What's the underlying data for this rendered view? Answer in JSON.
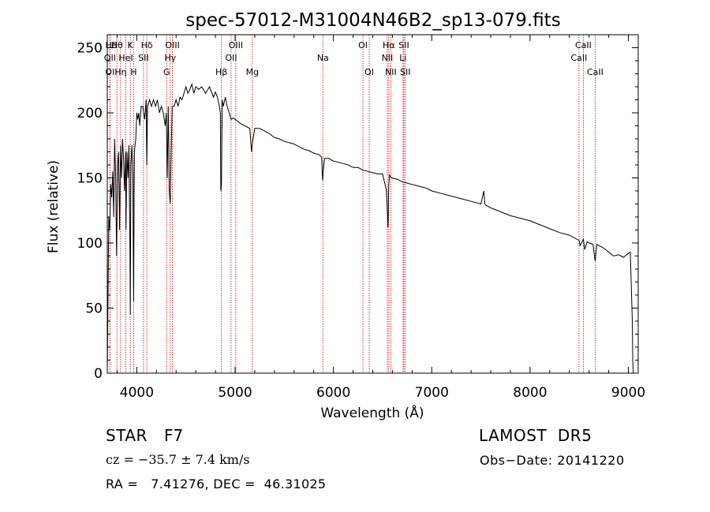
{
  "chart_data": {
    "type": "line",
    "title": "spec-57012-M31004N46B2_sp13-079.fits",
    "xlabel": "Wavelength (Å)",
    "ylabel": "Flux (relative)",
    "xlim": [
      3700,
      9100
    ],
    "ylim": [
      0,
      260
    ],
    "xticks": [
      4000,
      5000,
      6000,
      7000,
      8000,
      9000
    ],
    "yticks": [
      0,
      50,
      100,
      150,
      200,
      250
    ],
    "grid": false,
    "series": [
      {
        "x": [
          3700,
          3715,
          3725,
          3735,
          3745,
          3755,
          3765,
          3775,
          3785,
          3795,
          3805,
          3815,
          3825,
          3835,
          3845,
          3855,
          3865,
          3875,
          3885,
          3890,
          3900,
          3910,
          3920,
          3930,
          3934,
          3940,
          3950,
          3960,
          3968,
          3975,
          3990,
          4000,
          4010,
          4020,
          4030,
          4045,
          4060,
          4080,
          4095,
          4102,
          4110,
          4130,
          4150,
          4170,
          4190,
          4210,
          4230,
          4250,
          4270,
          4290,
          4300,
          4310,
          4320,
          4330,
          4340,
          4350,
          4360,
          4380,
          4400,
          4420,
          4440,
          4460,
          4480,
          4500,
          4520,
          4540,
          4560,
          4580,
          4600,
          4630,
          4660,
          4700,
          4740,
          4780,
          4800,
          4820,
          4840,
          4850,
          4855,
          4861,
          4870,
          4880,
          4900,
          4920,
          4940,
          4960,
          4980,
          5000,
          5050,
          5100,
          5150,
          5167,
          5172,
          5183,
          5200,
          5250,
          5300,
          5350,
          5400,
          5450,
          5500,
          5550,
          5600,
          5650,
          5700,
          5750,
          5800,
          5850,
          5880,
          5890,
          5896,
          5910,
          5950,
          6000,
          6050,
          6100,
          6150,
          6200,
          6250,
          6300,
          6350,
          6400,
          6450,
          6500,
          6540,
          6555,
          6563,
          6572,
          6590,
          6650,
          6700,
          6750,
          6800,
          6850,
          6900,
          6950,
          7000,
          7100,
          7200,
          7300,
          7400,
          7500,
          7530,
          7540,
          7550,
          7600,
          7700,
          7800,
          7900,
          8000,
          8100,
          8200,
          8300,
          8400,
          8450,
          8498,
          8510,
          8542,
          8555,
          8580,
          8600,
          8640,
          8662,
          8680,
          8700,
          8750,
          8800,
          8850,
          8900,
          8950,
          9000,
          9020,
          9040,
          9045,
          9050
        ],
        "y": [
          0,
          120,
          110,
          145,
          135,
          155,
          120,
          180,
          150,
          90,
          160,
          170,
          110,
          175,
          150,
          180,
          165,
          140,
          170,
          110,
          170,
          150,
          175,
          95,
          45,
          160,
          175,
          150,
          55,
          170,
          180,
          200,
          195,
          200,
          190,
          205,
          205,
          195,
          210,
          160,
          205,
          210,
          205,
          210,
          205,
          210,
          200,
          205,
          200,
          190,
          200,
          150,
          205,
          140,
          130,
          170,
          205,
          205,
          210,
          205,
          212,
          210,
          215,
          220,
          215,
          218,
          222,
          215,
          220,
          218,
          220,
          215,
          220,
          212,
          216,
          212,
          205,
          200,
          140,
          145,
          210,
          205,
          212,
          205,
          200,
          195,
          196,
          195,
          192,
          190,
          188,
          170,
          175,
          180,
          188,
          188,
          186,
          184,
          181,
          180,
          178,
          177,
          176,
          174,
          172,
          171,
          169,
          168,
          166,
          148,
          155,
          165,
          165,
          163,
          162,
          161,
          160,
          158,
          158,
          156,
          155,
          154,
          153,
          153,
          140,
          112,
          145,
          152,
          150,
          149,
          147,
          146,
          145,
          144,
          143,
          142,
          140,
          138,
          136,
          134,
          132,
          130,
          140,
          130,
          129,
          127,
          124,
          121,
          119,
          117,
          114,
          111,
          108,
          106,
          104,
          102,
          98,
          103,
          95,
          101,
          100,
          99,
          86,
          99,
          98,
          96,
          93,
          90,
          91,
          89,
          92,
          93,
          40,
          10,
          0
        ]
      }
    ],
    "annotations": [
      {
        "label": "Hδ",
        "x": 3740,
        "row": 1,
        "line": false
      },
      {
        "label": "OII",
        "x": 3727,
        "row": 2
      },
      {
        "label": "OI",
        "x": 3727,
        "row": 3
      },
      {
        "label": "Hθ",
        "x": 3798,
        "row": 1
      },
      {
        "label": "HeI",
        "x": 3889,
        "row": 2
      },
      {
        "label": "Hη",
        "x": 3835,
        "row": 3
      },
      {
        "label": "K",
        "x": 3934,
        "row": 1
      },
      {
        "label": "SII",
        "x": 4068,
        "row": 2
      },
      {
        "label": "H",
        "x": 3968,
        "row": 3
      },
      {
        "label": "Hδ",
        "x": 4102,
        "row": 1
      },
      {
        "label": "OIII",
        "x": 4363,
        "row": 1
      },
      {
        "label": "Hγ",
        "x": 4340,
        "row": 2
      },
      {
        "label": "G",
        "x": 4304,
        "row": 3
      },
      {
        "label": "OIII",
        "x": 5007,
        "row": 1
      },
      {
        "label": "OII",
        "x": 4959,
        "row": 2
      },
      {
        "label": "Hβ",
        "x": 4861,
        "row": 3
      },
      {
        "label": "Mg",
        "x": 5175,
        "row": 3
      },
      {
        "label": "Na",
        "x": 5893,
        "row": 2
      },
      {
        "label": "OI",
        "x": 6300,
        "row": 1
      },
      {
        "label": "OI",
        "x": 6364,
        "row": 3
      },
      {
        "label": "Hα",
        "x": 6563,
        "row": 1
      },
      {
        "label": "NII",
        "x": 6548,
        "row": 2
      },
      {
        "label": "NII",
        "x": 6584,
        "row": 3
      },
      {
        "label": "SII",
        "x": 6717,
        "row": 1
      },
      {
        "label": "Li",
        "x": 6708,
        "row": 2
      },
      {
        "label": "SII",
        "x": 6731,
        "row": 3
      },
      {
        "label": "CaII",
        "x": 8542,
        "row": 1
      },
      {
        "label": "CaII",
        "x": 8498,
        "row": 2
      },
      {
        "label": "CaII",
        "x": 8662,
        "row": 3
      }
    ],
    "line_color": "#000000",
    "marker_color": "#cc0000"
  },
  "info": {
    "object_class": "STAR",
    "subclass": "F7",
    "survey": "LAMOST  DR5",
    "cz": "cz = −35.7 ± 7.4 km/s",
    "obs_date": "Obs−Date: 20141220",
    "radec": "RA =   7.41276, DEC =  46.31025"
  }
}
